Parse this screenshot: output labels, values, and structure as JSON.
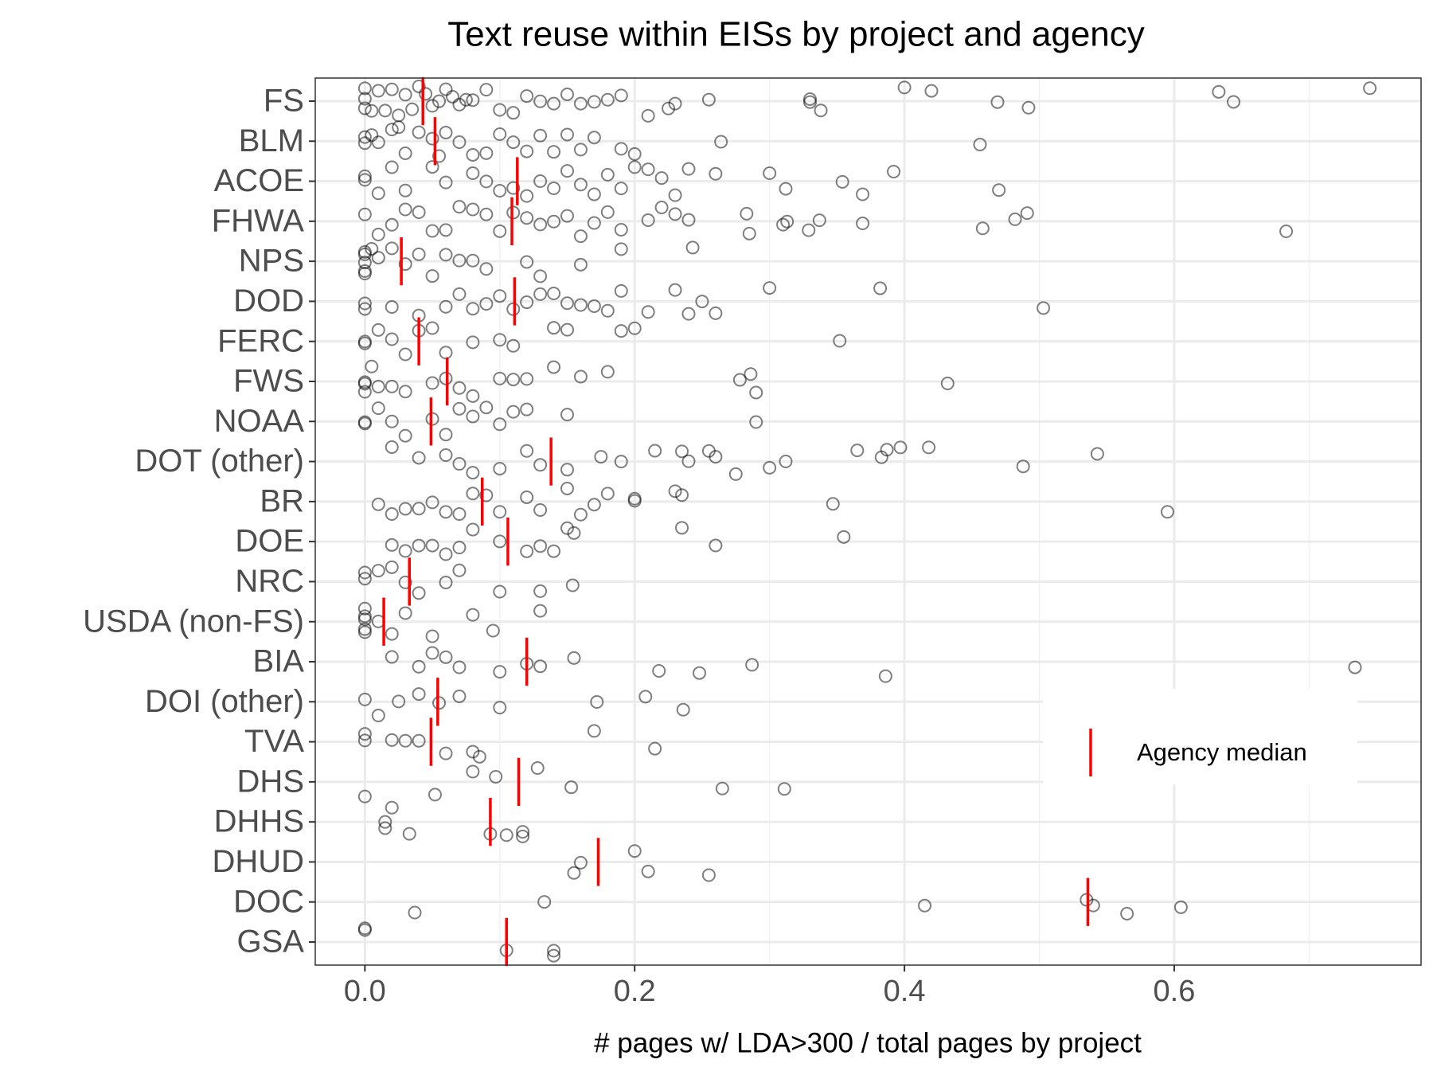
{
  "chart_data": {
    "type": "strip",
    "title": "Text reuse within EISs by project and agency",
    "x_label": "# pages w/ LDA>300 / total pages by project",
    "categories": [
      "FS",
      "BLM",
      "ACOE",
      "FHWA",
      "NPS",
      "DOD",
      "FERC",
      "FWS",
      "NOAA",
      "DOT (other)",
      "BR",
      "DOE",
      "NRC",
      "USDA (non-FS)",
      "BIA",
      "DOI (other)",
      "TVA",
      "DHS",
      "DHHS",
      "DHUD",
      "DOC",
      "GSA"
    ],
    "points": {
      "color": "#000000",
      "values": [
        [
          0,
          0,
          0,
          0.005,
          0.01,
          0.015,
          0.02,
          0.025,
          0.03,
          0.035,
          0.04,
          0.045,
          0.05,
          0.055,
          0.06,
          0.065,
          0.07,
          0.075,
          0.08,
          0.09,
          0.1,
          0.11,
          0.12,
          0.13,
          0.14,
          0.15,
          0.16,
          0.17,
          0.18,
          0.19,
          0.21,
          0.225,
          0.23,
          0.255,
          0.33,
          0.338,
          0.4,
          0.42,
          0.469,
          0.492,
          0.633,
          0.644,
          0.745,
          0.33
        ],
        [
          0,
          0,
          0.005,
          0.01,
          0.02,
          0.025,
          0.03,
          0.04,
          0.05,
          0.055,
          0.06,
          0.07,
          0.08,
          0.09,
          0.1,
          0.11,
          0.12,
          0.13,
          0.14,
          0.15,
          0.16,
          0.17,
          0.19,
          0.2,
          0.264,
          0.456
        ],
        [
          0,
          0,
          0.01,
          0.02,
          0.03,
          0.05,
          0.06,
          0.08,
          0.09,
          0.1,
          0.11,
          0.12,
          0.13,
          0.14,
          0.15,
          0.16,
          0.17,
          0.18,
          0.19,
          0.2,
          0.21,
          0.22,
          0.23,
          0.24,
          0.26,
          0.3,
          0.312,
          0.354,
          0.369,
          0.392,
          0.47
        ],
        [
          0,
          0.01,
          0.02,
          0.03,
          0.04,
          0.05,
          0.06,
          0.07,
          0.08,
          0.09,
          0.1,
          0.11,
          0.12,
          0.13,
          0.14,
          0.15,
          0.16,
          0.17,
          0.18,
          0.19,
          0.21,
          0.22,
          0.23,
          0.24,
          0.283,
          0.285,
          0.31,
          0.313,
          0.329,
          0.337,
          0.369,
          0.458,
          0.482,
          0.491,
          0.683
        ],
        [
          0,
          0,
          0,
          0,
          0,
          0.005,
          0.01,
          0.02,
          0.03,
          0.04,
          0.05,
          0.06,
          0.07,
          0.08,
          0.09,
          0.12,
          0.13,
          0.16,
          0.19,
          0.243
        ],
        [
          0,
          0,
          0.02,
          0.04,
          0.06,
          0.07,
          0.08,
          0.09,
          0.1,
          0.11,
          0.12,
          0.13,
          0.14,
          0.15,
          0.16,
          0.17,
          0.18,
          0.19,
          0.21,
          0.23,
          0.24,
          0.25,
          0.26,
          0.3,
          0.382,
          0.503
        ],
        [
          0,
          0,
          0.01,
          0.02,
          0.03,
          0.04,
          0.05,
          0.06,
          0.08,
          0.1,
          0.11,
          0.14,
          0.15,
          0.19,
          0.2,
          0.352
        ],
        [
          0,
          0,
          0,
          0.005,
          0.01,
          0.02,
          0.03,
          0.05,
          0.06,
          0.07,
          0.08,
          0.1,
          0.11,
          0.12,
          0.14,
          0.16,
          0.18,
          0.278,
          0.29,
          0.286,
          0.432
        ],
        [
          0,
          0,
          0.01,
          0.02,
          0.03,
          0.05,
          0.06,
          0.07,
          0.08,
          0.09,
          0.1,
          0.11,
          0.12,
          0.15,
          0.29
        ],
        [
          0.02,
          0.04,
          0.06,
          0.07,
          0.08,
          0.1,
          0.12,
          0.13,
          0.15,
          0.175,
          0.19,
          0.215,
          0.235,
          0.24,
          0.255,
          0.26,
          0.275,
          0.3,
          0.312,
          0.365,
          0.383,
          0.387,
          0.397,
          0.418,
          0.488,
          0.543
        ],
        [
          0.01,
          0.02,
          0.03,
          0.04,
          0.05,
          0.06,
          0.07,
          0.08,
          0.09,
          0.1,
          0.12,
          0.13,
          0.15,
          0.16,
          0.17,
          0.18,
          0.2,
          0.2,
          0.23,
          0.235,
          0.347,
          0.595
        ],
        [
          0.02,
          0.03,
          0.04,
          0.05,
          0.06,
          0.07,
          0.08,
          0.1,
          0.12,
          0.13,
          0.14,
          0.15,
          0.155,
          0.235,
          0.26,
          0.355
        ],
        [
          0,
          0,
          0.01,
          0.02,
          0.03,
          0.04,
          0.06,
          0.07,
          0.1,
          0.13,
          0.154
        ],
        [
          0,
          0,
          0,
          0,
          0,
          0.01,
          0.02,
          0.03,
          0.05,
          0.08,
          0.095,
          0.13
        ],
        [
          0.02,
          0.04,
          0.05,
          0.06,
          0.07,
          0.1,
          0.12,
          0.13,
          0.155,
          0.218,
          0.248,
          0.287,
          0.386,
          0.734
        ],
        [
          0,
          0.01,
          0.025,
          0.04,
          0.055,
          0.07,
          0.1,
          0.172,
          0.208,
          0.236
        ],
        [
          0,
          0,
          0.02,
          0.03,
          0.04,
          0.06,
          0.08,
          0.085,
          0.17,
          0.215
        ],
        [
          0,
          0.052,
          0.08,
          0.097,
          0.128,
          0.153,
          0.265,
          0.311
        ],
        [
          0.015,
          0.015,
          0.02,
          0.033,
          0.093,
          0.105,
          0.117,
          0.117
        ],
        [
          0.155,
          0.16,
          0.2,
          0.21,
          0.255
        ],
        [
          0.037,
          0.133,
          0.415,
          0.535,
          0.54,
          0.565,
          0.605
        ],
        [
          0,
          0,
          0.14,
          0.14,
          0.105
        ]
      ]
    },
    "median": {
      "name": "Agency median",
      "color": "#ff0000",
      "values": [
        0.043,
        0.052,
        0.113,
        0.109,
        0.027,
        0.111,
        0.04,
        0.061,
        0.049,
        0.138,
        0.087,
        0.106,
        0.033,
        0.014,
        0.12,
        0.054,
        0.049,
        0.114,
        0.093,
        0.173,
        0.536,
        0.105
      ]
    },
    "xlim": [
      -0.0368,
      0.783
    ],
    "xticks": [
      {
        "value": 0,
        "label": "0.0"
      },
      0.2,
      0.4,
      0.6
    ],
    "minor_xticks": [
      0.1,
      0.3,
      0.5,
      0.7
    ],
    "grid": true,
    "legend_position": "right"
  }
}
